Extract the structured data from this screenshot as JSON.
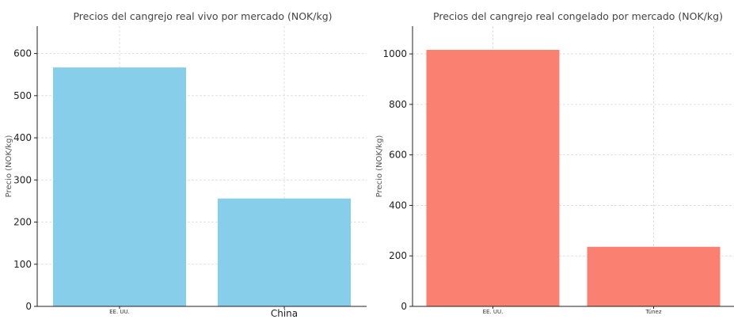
{
  "chart_data": [
    {
      "type": "bar",
      "title": "Precios del cangrejo real vivo por mercado (NOK/kg)",
      "ylabel": "Precio (NOK/kg)",
      "categories": [
        "EE. UU.",
        "China"
      ],
      "values": [
        567,
        256
      ],
      "ylim": [
        0,
        665
      ],
      "yticks": [
        0,
        100,
        200,
        300,
        400,
        500,
        600
      ],
      "color": "#87CEEB",
      "grid": true
    },
    {
      "type": "bar",
      "title": "Precios del cangrejo real congelado por mercado (NOK/kg)",
      "ylabel": "Precio (NOK/kg)",
      "categories": [
        "EE. UU.",
        "Túnez"
      ],
      "values": [
        1016,
        236
      ],
      "ylim": [
        0,
        1110
      ],
      "yticks": [
        0,
        200,
        400,
        600,
        800,
        1000
      ],
      "color": "#FA8072",
      "grid": true
    }
  ]
}
